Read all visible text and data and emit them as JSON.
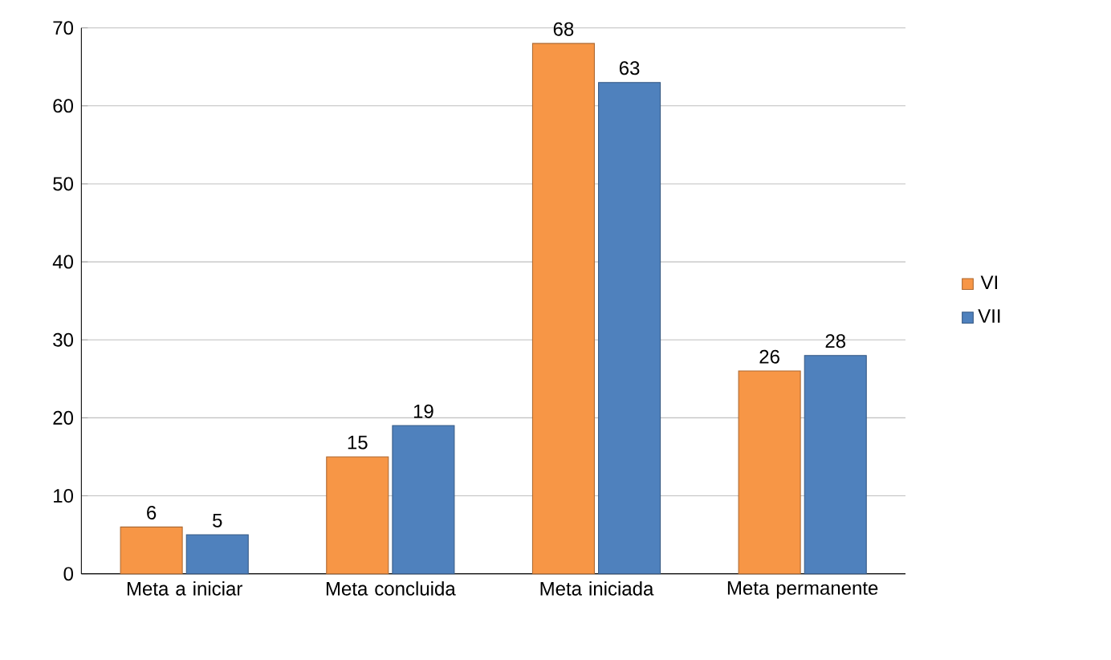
{
  "chart_data": {
    "type": "bar",
    "categories": [
      "Meta a iniciar",
      "Meta concluida",
      "Meta iniciada",
      "Meta permanente"
    ],
    "series": [
      {
        "name": "VI",
        "color": "#f79646",
        "values": [
          6,
          15,
          68,
          26
        ]
      },
      {
        "name": "VII",
        "color": "#4f81bd",
        "values": [
          5,
          19,
          63,
          28
        ]
      }
    ],
    "ylim": [
      0,
      70
    ],
    "yticks": [
      0,
      10,
      20,
      30,
      40,
      50,
      60,
      70
    ],
    "grid": "y",
    "legend": "right",
    "data_labels": true
  }
}
